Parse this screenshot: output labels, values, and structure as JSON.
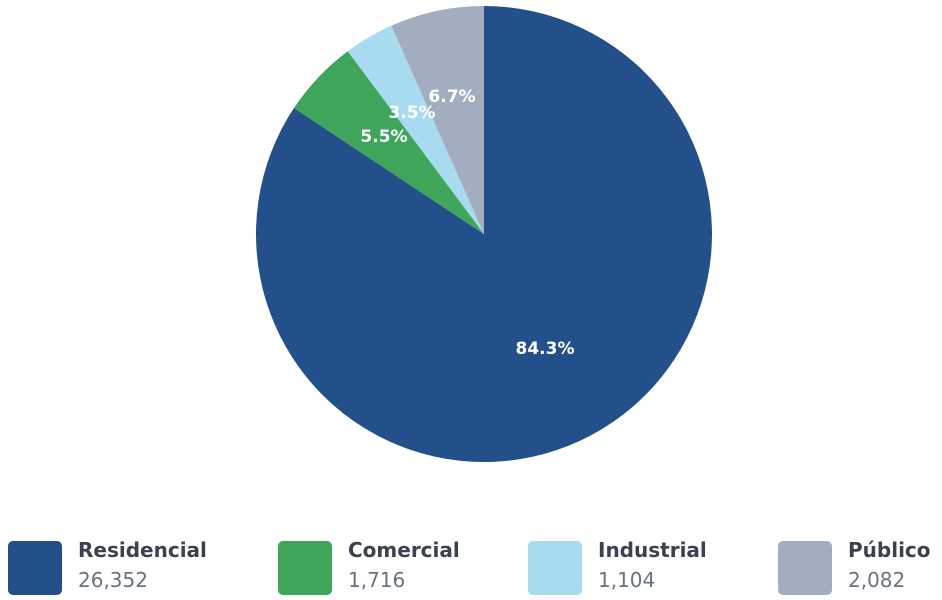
{
  "chart_data": {
    "type": "pie",
    "slices": [
      {
        "name": "Residencial",
        "value": 26352,
        "value_label": "26,352",
        "percent_label": "84.3%",
        "color": "#23508a"
      },
      {
        "name": "Comercial",
        "value": 1716,
        "value_label": "1,716",
        "percent_label": "5.5%",
        "color": "#3fa55a"
      },
      {
        "name": "Industrial",
        "value": 1104,
        "value_label": "1,104",
        "percent_label": "3.5%",
        "color": "#a8daf0"
      },
      {
        "name": "Público",
        "value": 2082,
        "value_label": "2,082",
        "percent_label": "6.7%",
        "color": "#a3adc0"
      }
    ],
    "start_angle": "12 o'clock",
    "direction": "clockwise",
    "legend_position": "bottom"
  }
}
